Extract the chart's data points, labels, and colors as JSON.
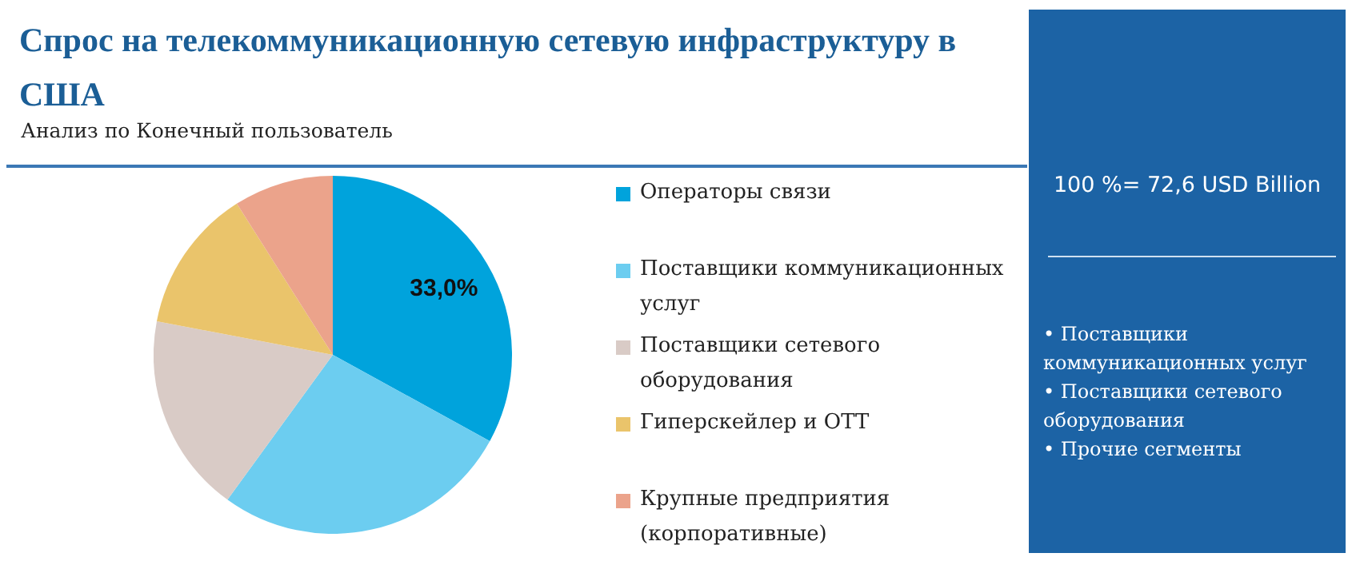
{
  "chart_data": {
    "type": "pie",
    "title": "Спрос на телекоммуникационную сетевую инфраструктуру в США",
    "subtitle": "Анализ по Конечный пользователь",
    "categories": [
      "Операторы связи",
      "Поставщики коммуникационных услуг",
      "Поставщики сетевого оборудования",
      "Гиперскейлер и OTT",
      "Крупные предприятия (корпоративные)"
    ],
    "values": [
      33.0,
      27.0,
      18.0,
      13.0,
      9.0
    ],
    "colors": [
      "#00a3dc",
      "#6ccdf0",
      "#d9cbc6",
      "#eac46b",
      "#eba38b"
    ],
    "value_labels": [
      "33,0%",
      null,
      null,
      null,
      null
    ],
    "legend": "right",
    "annotations": [
      "100 %= 72,6 USD Billion",
      "• Поставщики коммуникационных услуг",
      "• Поставщики сетевого оборудования",
      "• Прочие сегменты"
    ]
  }
}
